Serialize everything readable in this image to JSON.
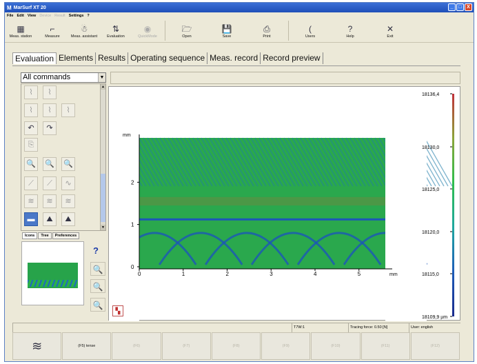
{
  "window": {
    "title": "MarSurf XT 20",
    "controls": [
      "_",
      "□",
      "X"
    ]
  },
  "menubar": [
    {
      "label": "File",
      "enabled": true
    },
    {
      "label": "Edit",
      "enabled": true
    },
    {
      "label": "View",
      "enabled": true
    },
    {
      "label": "Device",
      "enabled": false
    },
    {
      "label": "Result",
      "enabled": false
    },
    {
      "label": "Settings",
      "enabled": true
    },
    {
      "label": "?",
      "enabled": true
    }
  ],
  "toolbar": {
    "buttons": [
      {
        "label": "Meas. station",
        "icon": "meas-station-icon",
        "glyph": "▦",
        "enabled": true
      },
      {
        "label": "Measure",
        "icon": "measure-icon",
        "glyph": "⌐",
        "enabled": true
      },
      {
        "label": "Meas. assistant",
        "icon": "meas-assistant-icon",
        "glyph": "☃",
        "enabled": true
      },
      {
        "label": "Evaluation",
        "icon": "evaluation-icon",
        "glyph": "⇅",
        "enabled": true
      },
      {
        "label": "QuickMode",
        "icon": "quickmode-icon",
        "glyph": "◉",
        "enabled": false
      },
      {
        "label": "Open",
        "icon": "open-folder-icon",
        "glyph": "🗁",
        "enabled": true
      },
      {
        "label": "Save",
        "icon": "save-disk-icon",
        "glyph": "💾",
        "enabled": true
      },
      {
        "label": "Print",
        "icon": "printer-icon",
        "glyph": "⎙",
        "enabled": true
      },
      {
        "label": "Users",
        "icon": "users-icon",
        "glyph": "(",
        "enabled": true
      },
      {
        "label": "Help",
        "icon": "help-icon",
        "glyph": "?",
        "enabled": true
      },
      {
        "label": "Exit",
        "icon": "exit-icon",
        "glyph": "✕",
        "enabled": true
      }
    ]
  },
  "tabs": [
    {
      "label": "Evaluation",
      "active": true
    },
    {
      "label": "Elements",
      "active": false
    },
    {
      "label": "Results",
      "active": false
    },
    {
      "label": "Operating sequence",
      "active": false
    },
    {
      "label": "Meas. record",
      "active": false
    },
    {
      "label": "Record preview",
      "active": false
    }
  ],
  "commands_select": {
    "value": "All commands"
  },
  "icon_palette": {
    "icons": [
      {
        "name": "profile-filter-icon",
        "glyph": "⌇",
        "row": 0,
        "col": 0,
        "enabled": false
      },
      {
        "name": "profile-alt-icon",
        "glyph": "⌇",
        "row": 0,
        "col": 1,
        "enabled": false
      },
      {
        "name": "profile-a-icon",
        "glyph": "⌇",
        "row": 1,
        "col": 0,
        "enabled": false
      },
      {
        "name": "profile-b-icon",
        "glyph": "⌇",
        "row": 1,
        "col": 1,
        "enabled": false
      },
      {
        "name": "profile-c-icon",
        "glyph": "⌇",
        "row": 1,
        "col": 2,
        "enabled": false
      },
      {
        "name": "undo-icon",
        "glyph": "↶",
        "row": 2,
        "col": 0,
        "enabled": true
      },
      {
        "name": "redo-icon",
        "glyph": "↷",
        "row": 2,
        "col": 1,
        "enabled": true
      },
      {
        "name": "copy-profile-icon",
        "glyph": "⎘",
        "row": 3,
        "col": 0,
        "enabled": false
      },
      {
        "name": "zoom-in-icon",
        "glyph": "🔍",
        "row": 4,
        "col": 0,
        "enabled": true
      },
      {
        "name": "zoom-out-icon",
        "glyph": "🔍",
        "row": 4,
        "col": 1,
        "enabled": true
      },
      {
        "name": "zoom-reset-icon",
        "glyph": "🔍",
        "row": 4,
        "col": 2,
        "enabled": true
      },
      {
        "name": "level-icon",
        "glyph": "⟋",
        "row": 5,
        "col": 0,
        "enabled": false
      },
      {
        "name": "level-alt-icon",
        "glyph": "⟋",
        "row": 5,
        "col": 1,
        "enabled": false
      },
      {
        "name": "wave-icon",
        "glyph": "∿",
        "row": 5,
        "col": 2,
        "enabled": false
      },
      {
        "name": "surface-a-icon",
        "glyph": "≋",
        "row": 6,
        "col": 0,
        "enabled": false
      },
      {
        "name": "surface-b-icon",
        "glyph": "≋",
        "row": 6,
        "col": 1,
        "enabled": false
      },
      {
        "name": "surface-c-icon",
        "glyph": "≋",
        "row": 6,
        "col": 2,
        "enabled": false
      },
      {
        "name": "topography-icon",
        "glyph": "▬",
        "row": 7,
        "col": 0,
        "enabled": true,
        "selected": true
      },
      {
        "name": "topography-3d-icon",
        "glyph": "⛰",
        "row": 7,
        "col": 1,
        "enabled": true
      },
      {
        "name": "topography-3d-alt-icon",
        "glyph": "⛰",
        "row": 7,
        "col": 2,
        "enabled": true
      }
    ]
  },
  "subtabs": [
    {
      "label": "Icons",
      "active": true
    },
    {
      "label": "Tree",
      "active": false
    },
    {
      "label": "Preferences",
      "active": false
    }
  ],
  "zoom_tools": [
    {
      "name": "zoom-tool-a-icon",
      "glyph": "🔍"
    },
    {
      "name": "zoom-tool-b-icon",
      "glyph": "🔍"
    },
    {
      "name": "zoom-tool-c-icon",
      "glyph": "🔍"
    }
  ],
  "plot": {
    "y_unit": "mm",
    "x_unit": "mm",
    "x_ticks": [
      "0",
      "1",
      "2",
      "3",
      "4",
      "5"
    ],
    "y_ticks": [
      "0",
      "1",
      "2"
    ],
    "x_range": [
      0,
      5.6
    ],
    "y_range": [
      -0.05,
      3.05
    ],
    "colorbar_ticks": [
      "18136,4",
      "18130,0",
      "18125,0",
      "18120,0",
      "18115,0",
      "18109,9 µm"
    ],
    "colorbar_colors": [
      "#c0303a",
      "#8ba53a",
      "#2ebd4c",
      "#1fa7a0",
      "#1d5cb8",
      "#1a2a8c"
    ],
    "surface_color": "#2aa84d"
  },
  "statusbar": {
    "items": [
      "",
      "T7W:1",
      "Tracing force: 0.50 [N]",
      "User: english"
    ]
  },
  "function_keys": [
    {
      "label": "",
      "icon": "stack-icon",
      "glyph": "≋",
      "enabled": true
    },
    {
      "label": "(F5) tense",
      "enabled": true
    },
    {
      "label": "(F6)",
      "enabled": false
    },
    {
      "label": "(F7)",
      "enabled": false
    },
    {
      "label": "(F8)",
      "enabled": false
    },
    {
      "label": "(F9)",
      "enabled": false
    },
    {
      "label": "(F10)",
      "enabled": false
    },
    {
      "label": "(F11)",
      "enabled": false
    },
    {
      "label": "(F12)",
      "enabled": false
    }
  ]
}
